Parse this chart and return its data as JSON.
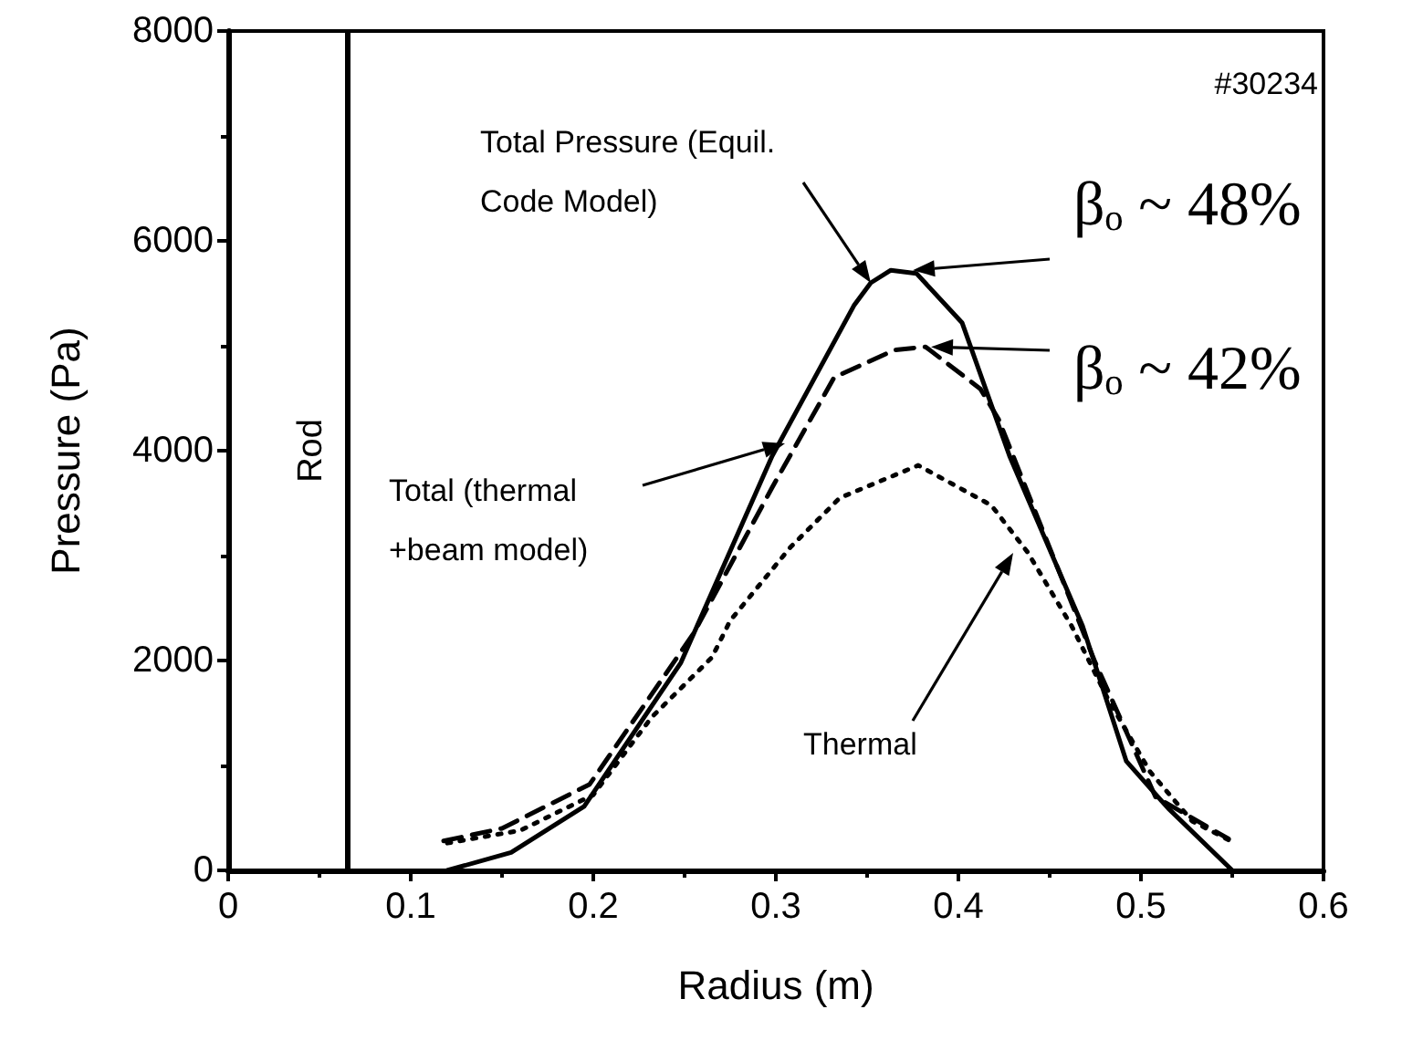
{
  "chart_data": {
    "type": "line",
    "xlabel": "Radius (m)",
    "ylabel": "Pressure (Pa)",
    "xlim": [
      0,
      0.6
    ],
    "xticks": [
      0,
      0.1,
      0.2,
      0.3,
      0.4,
      0.5,
      0.6
    ],
    "ylim": [
      0,
      8000
    ],
    "yticks": [
      0,
      2000,
      4000,
      6000,
      8000
    ],
    "grid": false,
    "marker": "none",
    "series": [
      {
        "color": "#000000",
        "line_style": "solid",
        "x": [
          0.12,
          0.155,
          0.195,
          0.248,
          0.298,
          0.343,
          0.352,
          0.363,
          0.377,
          0.402,
          0.428,
          0.468,
          0.492,
          0.515,
          0.55
        ],
        "values": [
          0,
          170,
          610,
          1980,
          3950,
          5390,
          5600,
          5720,
          5690,
          5220,
          3950,
          2330,
          1040,
          590,
          0
        ]
      },
      {
        "color": "#000000",
        "line_style": "dashed",
        "x": [
          0.118,
          0.15,
          0.198,
          0.255,
          0.298,
          0.332,
          0.365,
          0.382,
          0.412,
          0.422,
          0.475,
          0.508,
          0.548
        ],
        "values": [
          280,
          400,
          820,
          2260,
          3650,
          4700,
          4960,
          4990,
          4590,
          4300,
          1980,
          700,
          300
        ]
      },
      {
        "color": "#000000",
        "line_style": "dotted",
        "x": [
          0.12,
          0.16,
          0.2,
          0.232,
          0.265,
          0.275,
          0.308,
          0.335,
          0.378,
          0.418,
          0.438,
          0.462,
          0.482,
          0.505,
          0.528,
          0.548
        ],
        "values": [
          260,
          380,
          720,
          1460,
          2030,
          2380,
          3080,
          3550,
          3860,
          3480,
          3030,
          2330,
          1630,
          940,
          470,
          290
        ]
      }
    ],
    "ref_lines": [
      {
        "axis": "x",
        "value": 0.065,
        "label": "Rod"
      }
    ],
    "annotations": [
      "#30234",
      "Total Pressure (Equil.\nCode Model)",
      {
        "text": "βₒ ~ 48%",
        "x": 0.375,
        "y": 5720
      },
      {
        "text": "βₒ ~ 42%",
        "x": 0.385,
        "y": 4990
      },
      "Total (thermal\n+beam model)",
      "Thermal"
    ]
  }
}
